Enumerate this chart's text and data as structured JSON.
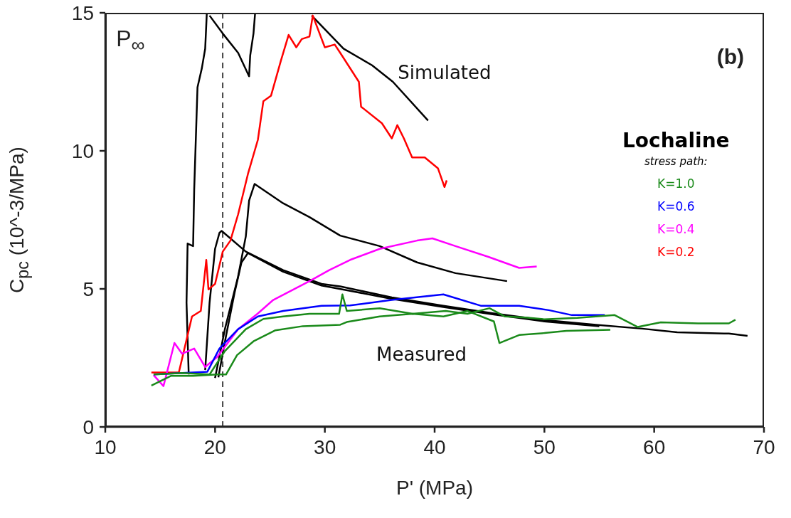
{
  "chart_data": {
    "type": "line",
    "xlabel": "P' (MPa)",
    "ylabel": "C$_{pc}$ (10^-3/MPa)",
    "legend_title": "stress path:",
    "legend": "right",
    "xlim": [
      10,
      70
    ],
    "xticks": [
      10,
      20,
      30,
      40,
      50,
      60,
      70
    ],
    "ylim": [
      0,
      15
    ],
    "yticks": [
      0,
      5,
      10,
      15
    ],
    "annotations": [
      "(b)",
      "Lochaline",
      "Simulated",
      "Measured"
    ],
    "ref_lines": [
      {
        "axis": "x",
        "value": 20.7,
        "label": "P$_{∞}$",
        "line_style": "dashed",
        "color": "#000000"
      }
    ],
    "series": [
      {
        "name": "K=1.0",
        "color": "#1a8a1a",
        "x": [
          14.4,
          17,
          19.5,
          20.9,
          22.8,
          24.4,
          26.2,
          28.6,
          31.3,
          31.6,
          32,
          35,
          38,
          41,
          43,
          45,
          46.4,
          48.3,
          50,
          53,
          56.4,
          58.5,
          60.6,
          64,
          66.8,
          67.4
        ],
        "values": [
          1.9,
          1.95,
          1.9,
          2.75,
          3.54,
          3.91,
          4.0,
          4.1,
          4.1,
          4.8,
          4.2,
          4.3,
          4.1,
          4.2,
          4.1,
          4.3,
          4.0,
          3.96,
          3.9,
          3.95,
          4.05,
          3.62,
          3.79,
          3.75,
          3.75,
          3.88
        ]
      },
      {
        "color": "#1a8a1a",
        "x": [
          14.2,
          16,
          18,
          20.2,
          21,
          22,
          23.5,
          25.5,
          28,
          31.4,
          32,
          35,
          38,
          40.8,
          43,
          45.4,
          45.9,
          47.7,
          50,
          52,
          56
        ],
        "values": [
          1.5,
          1.85,
          1.85,
          1.9,
          1.9,
          2.6,
          3.1,
          3.5,
          3.65,
          3.7,
          3.8,
          4.0,
          4.1,
          4.0,
          4.2,
          3.82,
          3.04,
          3.33,
          3.4,
          3.48,
          3.52
        ]
      },
      {
        "name": "K=0.6",
        "color": "#0000ff",
        "x": [
          14.4,
          17,
          19.3,
          20.4,
          22.1,
          23.9,
          26.2,
          29.7,
          32.3,
          36.1,
          40.8,
          44.2,
          47.7,
          50.4,
          52.5,
          55.5
        ],
        "values": [
          1.9,
          1.95,
          2.0,
          2.84,
          3.54,
          4.0,
          4.2,
          4.39,
          4.4,
          4.6,
          4.8,
          4.39,
          4.39,
          4.23,
          4.05,
          4.05
        ]
      },
      {
        "name": "K=0.4",
        "color": "#ff00ff",
        "x": [
          14.4,
          15.3,
          16.3,
          17.0,
          18.1,
          19.1,
          20.2,
          22.1,
          23.9,
          25.3,
          26.7,
          28.6,
          30.4,
          32.3,
          35.0,
          38.4,
          39.8,
          41.9,
          44.9,
          47.7,
          49.3
        ],
        "values": [
          1.88,
          1.48,
          3.04,
          2.65,
          2.84,
          2.17,
          2.54,
          3.54,
          4.11,
          4.6,
          4.89,
          5.28,
          5.68,
          6.05,
          6.45,
          6.75,
          6.83,
          6.55,
          6.16,
          5.76,
          5.81
        ]
      },
      {
        "name": "K=0.2",
        "color": "#ff0000",
        "x": [
          14.2,
          16.7,
          17.9,
          18.7,
          19.2,
          19.4,
          20.0,
          20.7,
          21.4,
          22.1,
          23.0,
          23.9,
          24.4,
          25.1,
          26.0,
          26.7,
          27.4,
          27.9,
          28.6,
          28.9,
          30.0,
          30.9,
          31.4,
          33.1,
          33.3,
          35.2,
          36.1,
          36.6,
          37.2,
          37.95,
          39.1,
          40.3,
          40.9,
          41.1
        ],
        "values": [
          1.97,
          1.97,
          4.0,
          4.2,
          6.05,
          4.98,
          5.18,
          6.35,
          6.75,
          7.7,
          9.17,
          10.4,
          11.8,
          12.0,
          13.27,
          14.2,
          13.75,
          14.05,
          14.14,
          14.9,
          13.75,
          13.85,
          13.55,
          12.5,
          11.6,
          11.0,
          10.45,
          10.93,
          10.45,
          9.76,
          9.76,
          9.37,
          8.69,
          8.93
        ]
      },
      {
        "color": "#000000",
        "x": [
          17.6,
          17.4,
          17.5,
          18.0,
          18.1,
          18.4,
          18.8,
          19.1,
          19.25,
          19.4,
          19.5,
          20.7,
          22.1,
          23.1,
          23.2,
          23.5,
          23.65,
          26,
          28.8,
          31.7,
          34.3,
          36.2,
          39.4
        ],
        "values": [
          1.9,
          4.5,
          6.64,
          6.55,
          8.6,
          12.3,
          13.0,
          13.7,
          15,
          null,
          14.9,
          14.25,
          13.55,
          12.7,
          13.45,
          14.25,
          15,
          null,
          14.9,
          13.7,
          13.1,
          12.5,
          11.1
        ]
      },
      {
        "color": "#000000",
        "x": [
          20.0,
          20.9,
          22.1,
          22.8,
          23.1,
          23.6,
          26.2,
          28.6,
          31.4,
          35.0,
          38.4,
          41.9,
          46.6
        ],
        "values": [
          1.77,
          3.55,
          5.45,
          6.9,
          8.2,
          8.8,
          8.1,
          7.6,
          6.93,
          6.55,
          5.96,
          5.57,
          5.28
        ]
      },
      {
        "color": "#000000",
        "x": [
          19.1,
          19.5,
          20.0,
          20.4,
          20.6,
          22.8,
          26.2,
          29.7,
          31.4,
          36.1,
          40.8,
          45.4,
          50.0,
          54.7,
          58.9,
          62.1,
          66.8,
          68.5
        ],
        "values": [
          2.06,
          4.5,
          6.45,
          7.03,
          7.1,
          6.35,
          5.68,
          5.18,
          5.09,
          4.69,
          4.39,
          4.11,
          3.87,
          3.7,
          3.56,
          3.43,
          3.38,
          3.3
        ]
      },
      {
        "color": "#000000",
        "x": [
          20.3,
          21.0,
          21.8,
          22.4,
          23.0,
          26.2,
          29.7,
          32.3,
          36.1,
          40.8,
          45.4,
          50.0,
          55.0
        ],
        "values": [
          1.8,
          3.3,
          4.9,
          5.95,
          6.3,
          5.62,
          5.12,
          4.93,
          4.64,
          4.34,
          4.07,
          3.82,
          3.65
        ]
      }
    ]
  }
}
